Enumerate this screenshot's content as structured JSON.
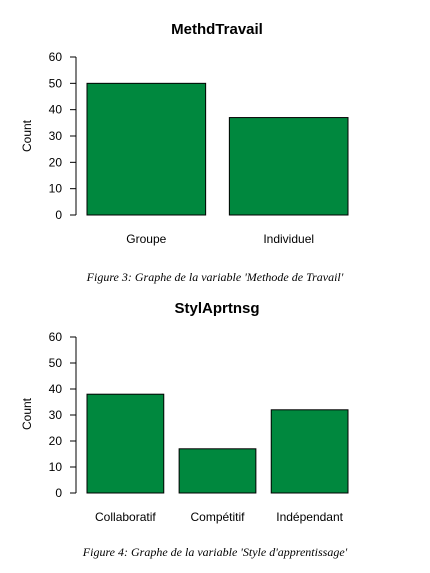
{
  "chart_data": [
    {
      "type": "bar",
      "title": "MethdTravail",
      "xlabel": "",
      "ylabel": "Count",
      "categories": [
        "Groupe",
        "Individuel"
      ],
      "values": [
        50,
        37
      ],
      "ylim": [
        0,
        60
      ],
      "yticks": [
        0,
        10,
        20,
        30,
        40,
        50,
        60
      ],
      "bar_color": "#00883e",
      "caption": "Figure 3: Graphe de la variable 'Methode de Travail'"
    },
    {
      "type": "bar",
      "title": "StylAprtnsg",
      "xlabel": "",
      "ylabel": "Count",
      "categories": [
        "Collaboratif",
        "Compétitif",
        "Indépendant"
      ],
      "values": [
        38,
        17,
        32
      ],
      "ylim": [
        0,
        60
      ],
      "yticks": [
        0,
        10,
        20,
        30,
        40,
        50,
        60
      ],
      "bar_color": "#00883e",
      "caption": "Figure 4: Graphe de la variable 'Style d'apprentissage'"
    }
  ]
}
